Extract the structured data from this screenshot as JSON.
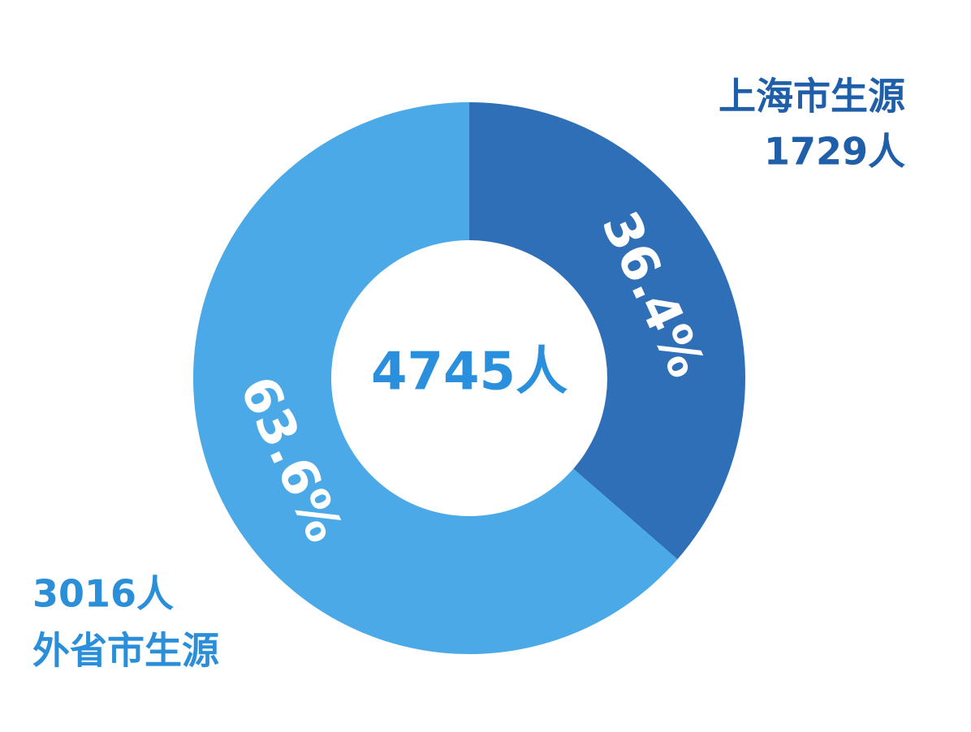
{
  "chart_data": {
    "type": "donut",
    "categories": [
      "上海市生源",
      "外省市生源"
    ],
    "values": [
      36.4,
      63.6
    ],
    "value_labels": [
      "36.4%",
      "63.6%"
    ],
    "count_labels": [
      "1729人",
      "3016人"
    ],
    "center_label": "4745人",
    "colors": [
      "#2f6fb7",
      "#4aa9e6"
    ]
  }
}
